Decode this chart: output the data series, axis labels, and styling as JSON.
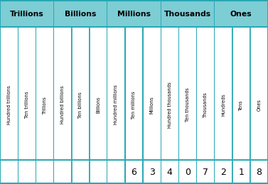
{
  "header_groups": [
    "Trillions",
    "Billions",
    "Millions",
    "Thousands",
    "Ones"
  ],
  "column_labels": [
    "Hundred trillions",
    "Ten trillions",
    "Trillions",
    "Hundred billions",
    "Ten billions",
    "Billions",
    "Hundred millions",
    "Ten millions",
    "Millions",
    "Hundred thousands",
    "Ten thousands",
    "Thousands",
    "Hundreds",
    "Tens",
    "Ones"
  ],
  "values": [
    "",
    "",
    "",
    "",
    "",
    "",
    "",
    "6",
    "3",
    "4",
    "0",
    "7",
    "2",
    "1",
    "8"
  ],
  "header_bg": "#7DCDD4",
  "header_text": "#000000",
  "cell_bg": "#FFFFFF",
  "border_color": "#29A8B5",
  "value_text": "#000000",
  "label_text": "#000000",
  "n_cols": 15,
  "group_border_cols": [
    0,
    3,
    6,
    9,
    12,
    15
  ],
  "figsize": [
    3.77,
    2.6
  ],
  "dpi": 100
}
